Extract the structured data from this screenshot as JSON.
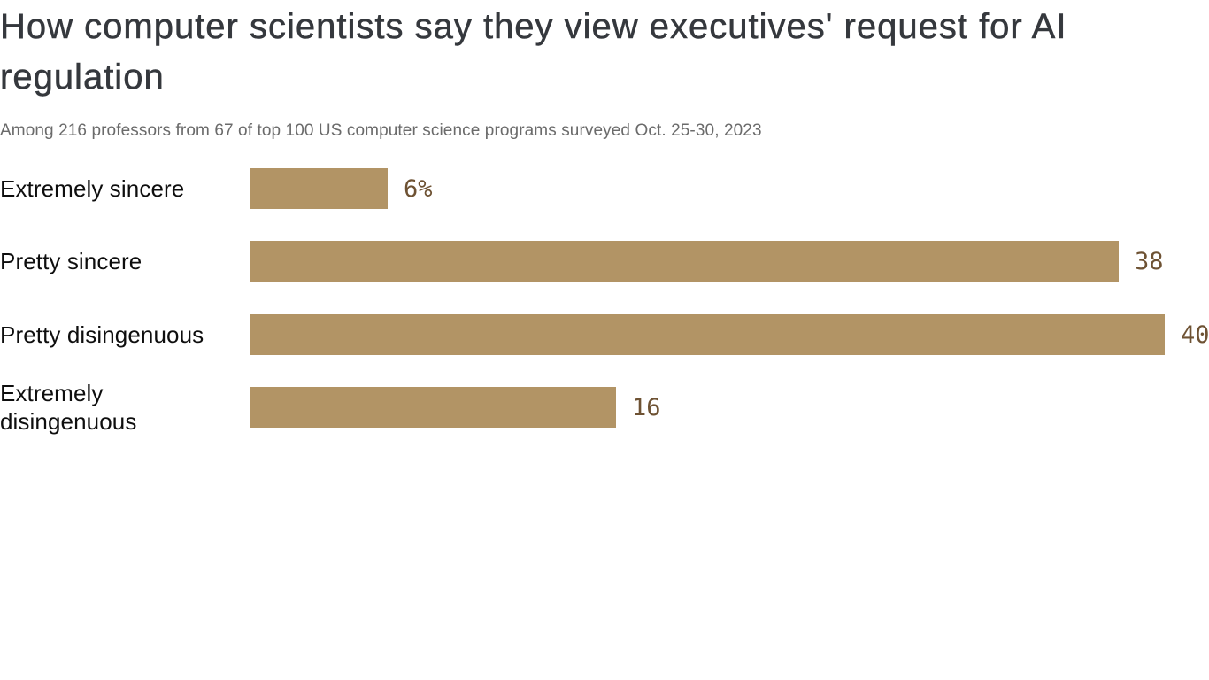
{
  "chart_data": {
    "type": "bar",
    "orientation": "horizontal",
    "title": "How computer scientists say they view executives' request for AI regulation",
    "subtitle": "Among 216 professors from 67 of top 100 US computer science programs surveyed Oct. 25-30, 2023",
    "categories": [
      "Extremely sincere",
      "Pretty sincere",
      "Pretty disingenuous",
      "Extremely disingenuous"
    ],
    "values": [
      6,
      38,
      40,
      16
    ],
    "value_labels": [
      "6%",
      "38",
      "40",
      "16"
    ],
    "unit": "percent of professors",
    "xlim": [
      0,
      40
    ],
    "grid": false,
    "legend": false,
    "axis_ticks": "none",
    "colors": {
      "bar": "#b29465",
      "value_label": "#6e5233",
      "title": "#35383d",
      "category_label": "#0e0e0e",
      "subtitle": "#6b6b6b",
      "background": "#ffffff"
    }
  }
}
